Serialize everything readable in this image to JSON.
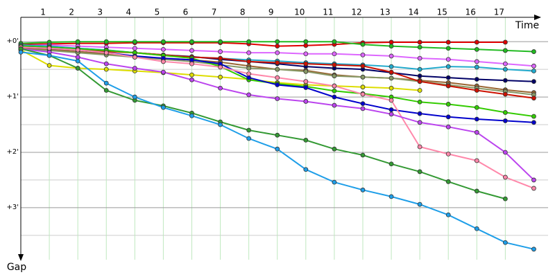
{
  "chart_data": {
    "type": "line",
    "x_label": "Time",
    "y_label": "Gap",
    "x": [
      0,
      1,
      2,
      3,
      4,
      5,
      6,
      7,
      8,
      9,
      10,
      11,
      12,
      13,
      14,
      15,
      16,
      17,
      18
    ],
    "xlim": [
      0,
      18.5
    ],
    "xticks": [
      1,
      2,
      3,
      4,
      5,
      6,
      7,
      8,
      9,
      10,
      11,
      12,
      13,
      14,
      15,
      16,
      17
    ],
    "ylim": [
      -0.44,
      3.94
    ],
    "yticks": [
      {
        "value": 0,
        "label": "+0'"
      },
      {
        "value": 1,
        "label": "+1'"
      },
      {
        "value": 2,
        "label": "+2'"
      },
      {
        "value": 3,
        "label": "+3'"
      }
    ],
    "minor_yticks": [
      0.5,
      1.5,
      2.5,
      3.5
    ],
    "grid": true,
    "series": [
      {
        "color": "#e00000",
        "values": [
          0.05,
          0.04,
          0.03,
          0.03,
          0.02,
          0.02,
          0.02,
          0.02,
          0.04,
          0.08,
          0.07,
          0.05,
          0.02,
          0.01,
          0.01,
          0.01,
          0.01,
          0.01,
          null
        ]
      },
      {
        "color": "#22bb22",
        "values": [
          0.03,
          0.01,
          0.0,
          0.0,
          0.0,
          0.0,
          0.0,
          0.0,
          0.0,
          0.0,
          0.0,
          0.0,
          0.05,
          0.08,
          0.1,
          0.12,
          0.14,
          0.16,
          0.18
        ]
      },
      {
        "color": "#dd66ff",
        "values": [
          0.07,
          0.06,
          0.08,
          0.1,
          0.12,
          0.14,
          0.16,
          0.18,
          0.2,
          0.2,
          0.22,
          0.22,
          0.24,
          0.26,
          0.3,
          0.32,
          0.36,
          0.4,
          0.44
        ]
      },
      {
        "color": "#22aacc",
        "values": [
          0.06,
          0.08,
          0.12,
          0.15,
          0.2,
          0.25,
          0.28,
          0.3,
          0.33,
          0.35,
          0.38,
          0.4,
          0.42,
          0.45,
          0.5,
          0.45,
          0.46,
          0.5,
          0.53
        ]
      },
      {
        "color": "#000066",
        "values": [
          0.08,
          0.1,
          0.13,
          0.16,
          0.2,
          0.24,
          0.27,
          0.32,
          0.36,
          0.4,
          0.45,
          0.48,
          0.5,
          0.56,
          0.62,
          0.65,
          0.68,
          0.7,
          0.72
        ]
      },
      {
        "color": "#996633",
        "values": [
          0.12,
          0.14,
          0.18,
          0.22,
          0.27,
          0.3,
          0.33,
          0.37,
          0.44,
          0.5,
          0.52,
          0.6,
          0.64,
          0.66,
          0.7,
          0.74,
          0.8,
          0.87,
          0.92
        ]
      },
      {
        "color": "#889966",
        "values": [
          0.14,
          0.16,
          0.2,
          0.24,
          0.28,
          0.32,
          0.36,
          0.42,
          0.48,
          0.5,
          0.54,
          0.62,
          0.64,
          0.66,
          0.72,
          0.78,
          0.84,
          0.9,
          0.96
        ]
      },
      {
        "color": "#cc1100",
        "values": [
          0.1,
          0.12,
          0.15,
          0.18,
          0.2,
          0.24,
          0.28,
          0.3,
          0.36,
          0.38,
          0.4,
          0.42,
          0.44,
          0.55,
          0.72,
          0.8,
          0.88,
          0.95,
          1.02
        ]
      },
      {
        "color": "#dddd00",
        "values": [
          0.15,
          0.43,
          0.48,
          0.5,
          0.53,
          0.56,
          0.6,
          0.64,
          0.68,
          0.74,
          0.78,
          0.8,
          0.82,
          0.84,
          0.88,
          null,
          null,
          null,
          null
        ]
      },
      {
        "color": "#33cc00",
        "values": [
          0.08,
          0.1,
          0.13,
          0.16,
          0.2,
          0.25,
          0.3,
          0.45,
          0.69,
          0.76,
          0.81,
          0.89,
          0.94,
          1.0,
          1.09,
          1.13,
          1.19,
          1.28,
          1.35
        ]
      },
      {
        "color": "#0000cc",
        "values": [
          0.1,
          0.12,
          0.15,
          0.2,
          0.26,
          0.3,
          0.33,
          0.4,
          0.65,
          0.78,
          0.83,
          1.0,
          1.12,
          1.23,
          1.3,
          1.36,
          1.4,
          1.43,
          1.46
        ]
      },
      {
        "color": "#ff88aa",
        "values": [
          0.1,
          0.12,
          0.15,
          0.2,
          0.28,
          0.36,
          0.4,
          0.46,
          0.58,
          0.65,
          0.72,
          0.8,
          0.95,
          1.06,
          1.9,
          2.03,
          2.15,
          2.45,
          2.65
        ]
      },
      {
        "color": "#bb44ee",
        "values": [
          0.13,
          0.19,
          0.28,
          0.4,
          0.48,
          0.55,
          0.69,
          0.84,
          0.96,
          1.03,
          1.08,
          1.15,
          1.21,
          1.31,
          1.46,
          1.54,
          1.64,
          2.0,
          2.5
        ]
      },
      {
        "color": "#339933",
        "values": [
          0.13,
          0.25,
          0.48,
          0.88,
          1.06,
          1.16,
          1.29,
          1.45,
          1.6,
          1.69,
          1.78,
          1.94,
          2.05,
          2.21,
          2.35,
          2.53,
          2.7,
          2.84,
          null
        ]
      },
      {
        "color": "#1e9ee8",
        "values": [
          0.19,
          0.25,
          0.35,
          0.75,
          1.0,
          1.19,
          1.34,
          1.5,
          1.75,
          1.94,
          2.31,
          2.54,
          2.68,
          2.8,
          2.94,
          3.13,
          3.38,
          3.63,
          3.75
        ]
      }
    ]
  }
}
